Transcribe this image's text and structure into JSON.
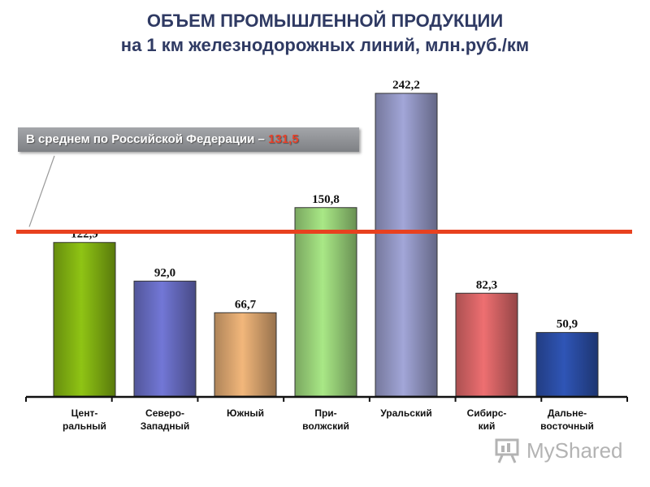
{
  "title_line1": "ОБЪЕМ ПРОМЫШЛЕННОЙ ПРОДУКЦИИ",
  "title_line2": "на 1 км  железнодорожных линий, млн.руб./км",
  "average": {
    "label": "В среднем по Российской Федерации – ",
    "value_text": "131,5",
    "value": 131.5,
    "line_color": "#e8411f"
  },
  "watermark": "MyShared",
  "chart_data": {
    "type": "bar",
    "categories": [
      [
        "Цент-",
        "ральный"
      ],
      [
        "Северо-",
        "Западный"
      ],
      [
        "Южный"
      ],
      [
        "При-",
        "волжский"
      ],
      [
        "Уральский"
      ],
      [
        "Сибирс-",
        "кий"
      ],
      [
        "Дальне-",
        "восточный"
      ]
    ],
    "values": [
      122.9,
      92.0,
      66.7,
      150.8,
      242.2,
      82.3,
      50.9
    ],
    "value_labels": [
      "122,9",
      "92,0",
      "66,7",
      "150,8",
      "242,2",
      "82,3",
      "50,9"
    ],
    "colors": [
      "#8fc414",
      "#7277d6",
      "#f2b77b",
      "#a9e886",
      "#a2a6d8",
      "#ee6f71",
      "#2f55b6"
    ],
    "ylim": [
      0,
      250
    ],
    "grid": false,
    "legend": "none"
  }
}
